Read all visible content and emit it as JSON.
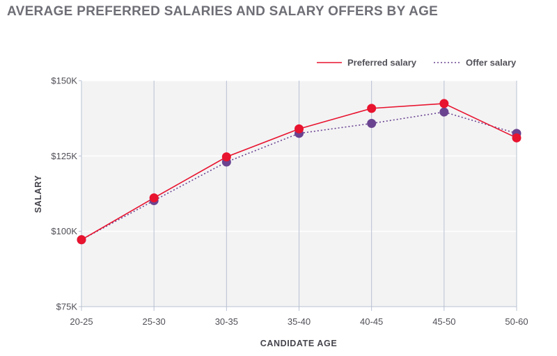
{
  "chart_data": {
    "type": "line",
    "title": "AVERAGE PREFERRED SALARIES AND SALARY OFFERS BY AGE",
    "xlabel": "CANDIDATE AGE",
    "ylabel": "SALARY",
    "categories": [
      "20-25",
      "25-30",
      "30-35",
      "35-40",
      "40-45",
      "45-50",
      "50-60"
    ],
    "ylim": [
      75000,
      150000
    ],
    "yticks": [
      {
        "value": 75000,
        "label": "$75K"
      },
      {
        "value": 100000,
        "label": "$100K"
      },
      {
        "value": 125000,
        "label": "$125K"
      },
      {
        "value": 150000,
        "label": "$150K"
      }
    ],
    "grid": true,
    "legend_position": "top-right",
    "series": [
      {
        "name": "Preferred salary",
        "style": "solid",
        "color": "#e8132e",
        "values": [
          97200,
          111100,
          124700,
          134000,
          140800,
          142400,
          131000
        ]
      },
      {
        "name": "Offer salary",
        "style": "dotted",
        "color": "#6a4390",
        "values": [
          97200,
          110200,
          123000,
          132500,
          135800,
          139600,
          132500
        ]
      }
    ]
  },
  "colors": {
    "plot_background": "#f3f3f4",
    "grid_vertical": "#b8c0d2",
    "grid_horizontal": "#ffffff",
    "axis_line": "#b8c0d2",
    "title": "#6e6e76"
  }
}
